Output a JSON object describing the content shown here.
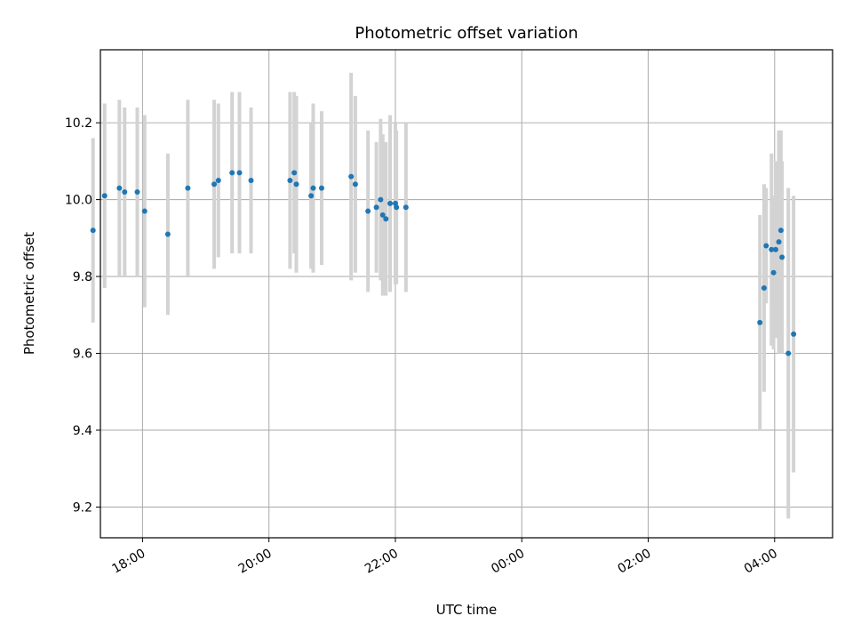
{
  "chart_data": {
    "type": "scatter",
    "title": "Photometric offset variation",
    "xlabel": "UTC time",
    "ylabel": "Photometric offset",
    "x_axis_kind": "time",
    "xlim": [
      "17:20",
      "04:55 +1d"
    ],
    "ylim": [
      9.12,
      10.39
    ],
    "grid": true,
    "x_tick_labels": [
      "18:00",
      "20:00",
      "22:00",
      "00:00",
      "02:00",
      "04:00"
    ],
    "y_tick_labels": [
      "9.2",
      "9.4",
      "9.6",
      "9.8",
      "10.0",
      "10.2"
    ],
    "colors": {
      "points": "#1f77b4",
      "errorbars": "#d3d3d3",
      "grid": "#b0b0b0"
    },
    "points": [
      {
        "t": "17:13",
        "y": 9.92,
        "err": 0.24
      },
      {
        "t": "17:24",
        "y": 10.01,
        "err": 0.24
      },
      {
        "t": "17:38",
        "y": 10.03,
        "err": 0.23
      },
      {
        "t": "17:43",
        "y": 10.02,
        "err": 0.22
      },
      {
        "t": "17:55",
        "y": 10.02,
        "err": 0.22
      },
      {
        "t": "18:02",
        "y": 9.97,
        "err": 0.25
      },
      {
        "t": "18:24",
        "y": 9.91,
        "err": 0.21
      },
      {
        "t": "18:43",
        "y": 10.03,
        "err": 0.23
      },
      {
        "t": "19:08",
        "y": 10.04,
        "err": 0.22
      },
      {
        "t": "19:12",
        "y": 10.05,
        "err": 0.2
      },
      {
        "t": "19:25",
        "y": 10.07,
        "err": 0.21
      },
      {
        "t": "19:32",
        "y": 10.07,
        "err": 0.21
      },
      {
        "t": "19:43",
        "y": 10.05,
        "err": 0.19
      },
      {
        "t": "20:20",
        "y": 10.05,
        "err": 0.23
      },
      {
        "t": "20:24",
        "y": 10.07,
        "err": 0.21
      },
      {
        "t": "20:26",
        "y": 10.04,
        "err": 0.23
      },
      {
        "t": "20:40",
        "y": 10.01,
        "err": 0.19
      },
      {
        "t": "20:42",
        "y": 10.03,
        "err": 0.22
      },
      {
        "t": "20:50",
        "y": 10.03,
        "err": 0.2
      },
      {
        "t": "21:18",
        "y": 10.06,
        "err": 0.27
      },
      {
        "t": "21:22",
        "y": 10.04,
        "err": 0.23
      },
      {
        "t": "21:34",
        "y": 9.97,
        "err": 0.21
      },
      {
        "t": "21:42",
        "y": 9.98,
        "err": 0.17
      },
      {
        "t": "21:46",
        "y": 10.0,
        "err": 0.21
      },
      {
        "t": "21:48",
        "y": 9.96,
        "err": 0.21
      },
      {
        "t": "21:51",
        "y": 9.95,
        "err": 0.2
      },
      {
        "t": "21:55",
        "y": 9.99,
        "err": 0.23
      },
      {
        "t": "22:00",
        "y": 9.99,
        "err": 0.21
      },
      {
        "t": "22:01",
        "y": 9.98,
        "err": 0.2
      },
      {
        "t": "22:10",
        "y": 9.98,
        "err": 0.22
      },
      {
        "t": "03:46 +1d",
        "y": 9.68,
        "err": 0.28
      },
      {
        "t": "03:50 +1d",
        "y": 9.77,
        "err": 0.27
      },
      {
        "t": "03:52 +1d",
        "y": 9.88,
        "err": 0.15
      },
      {
        "t": "03:57 +1d",
        "y": 9.87,
        "err": 0.25
      },
      {
        "t": "03:59 +1d",
        "y": 9.81,
        "err": 0.2
      },
      {
        "t": "04:01 +1d",
        "y": 9.87,
        "err": 0.23
      },
      {
        "t": "04:04 +1d",
        "y": 9.89,
        "err": 0.29
      },
      {
        "t": "04:06 +1d",
        "y": 9.92,
        "err": 0.26
      },
      {
        "t": "04:07 +1d",
        "y": 9.85,
        "err": 0.25
      },
      {
        "t": "04:13 +1d",
        "y": 9.6,
        "err": 0.43
      },
      {
        "t": "04:18 +1d",
        "y": 9.65,
        "err": 0.36
      }
    ]
  }
}
